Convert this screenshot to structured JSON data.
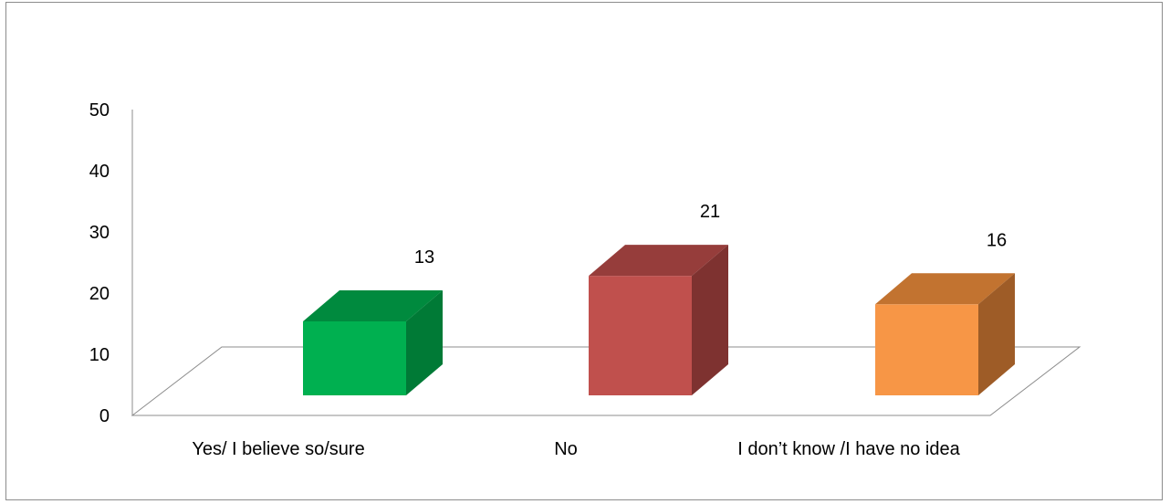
{
  "chart_data": {
    "type": "bar",
    "style": "3d-column",
    "categories": [
      "Yes/ I believe so/sure",
      "No",
      "I don’t know /I have no idea"
    ],
    "values": [
      13,
      21,
      16
    ],
    "data_labels": [
      "13",
      "21",
      "16"
    ],
    "colors": [
      {
        "front": "#00b050",
        "top": "#008a3e",
        "side": "#007a36"
      },
      {
        "front": "#c0504d",
        "top": "#963d3b",
        "side": "#7e3230"
      },
      {
        "front": "#f79646",
        "top": "#c27330",
        "side": "#9e5c27"
      }
    ],
    "ylim": [
      0,
      50
    ],
    "yticks": [
      "0",
      "10",
      "20",
      "30",
      "40",
      "50"
    ],
    "title": "",
    "xlabel": "",
    "ylabel": "",
    "grid": false,
    "legend": "none"
  }
}
